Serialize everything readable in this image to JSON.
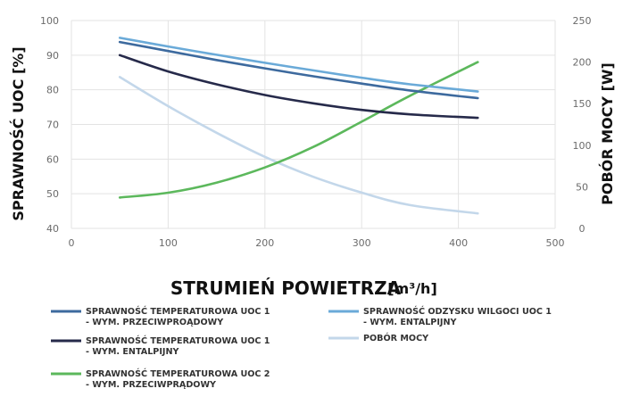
{
  "chart_data": {
    "type": "line",
    "xlabel": "STRUMIEŃ POWIETRZA",
    "xlabel_unit": "[m³/h]",
    "ylabel": "SPRAWNOŚĆ UOC [%]",
    "y2label": "POBÓR MOCY [W]",
    "xlim": [
      0,
      500
    ],
    "ylim": [
      40,
      100
    ],
    "y2lim": [
      0,
      250
    ],
    "x_ticks": [
      0,
      100,
      200,
      300,
      400,
      500
    ],
    "y_ticks": [
      40,
      50,
      60,
      70,
      80,
      90,
      100
    ],
    "y2_ticks": [
      0,
      50,
      100,
      150,
      200,
      250
    ],
    "grid": true,
    "legend_position": "bottom",
    "series": [
      {
        "name": "SPRAWNOŚĆ TEMPERATUROWA UOC 1 - WYM. PRZECIWPROĄDOWY",
        "axis": "left",
        "color": "#3d6a9e",
        "x": [
          50,
          100,
          150,
          200,
          250,
          300,
          350,
          420
        ],
        "values": [
          93.8,
          91.2,
          88.6,
          86.2,
          83.9,
          81.8,
          79.8,
          77.6
        ]
      },
      {
        "name": "SPRAWNOŚĆ TEMPERATUROWA UOC 1 - WYM. ENTALPIJNY",
        "axis": "left",
        "color": "#262a4a",
        "x": [
          50,
          100,
          150,
          200,
          250,
          300,
          350,
          420
        ],
        "values": [
          90,
          85.3,
          81.6,
          78.5,
          76.1,
          74.2,
          72.9,
          71.9
        ]
      },
      {
        "name": "SPRAWNOŚĆ TEMPERATUROWA UOC 2 - WYM. PRZECIWPRĄDOWY",
        "axis": "left",
        "color": "#5cb85c",
        "x": [
          50,
          100,
          150,
          200,
          250,
          300,
          350,
          420
        ],
        "values": [
          48.9,
          50.3,
          53.2,
          57.6,
          63.5,
          70.8,
          78.3,
          88
        ]
      },
      {
        "name": "SPRAWNOŚĆ ODZYSKU WILGOCI UOC 1 - WYM. ENTALPIJNY",
        "axis": "left",
        "color": "#6aaad8",
        "x": [
          50,
          100,
          150,
          200,
          250,
          300,
          350,
          420
        ],
        "values": [
          95,
          92.5,
          90.1,
          87.8,
          85.6,
          83.5,
          81.6,
          79.5
        ]
      },
      {
        "name": "POBÓR MOCY",
        "axis": "right",
        "color": "#c3d7ea",
        "x": [
          50,
          100,
          150,
          200,
          250,
          300,
          350,
          420
        ],
        "values": [
          182,
          147,
          115,
          86,
          62,
          43,
          28,
          18
        ]
      }
    ]
  },
  "legend": [
    {
      "line1": "SPRAWNOŚĆ TEMPERATUROWA UOC 1",
      "line2": "- WYM. PRZECIWPROĄDOWY",
      "color": "#3d6a9e"
    },
    {
      "line1": "SPRAWNOŚĆ ODZYSKU WILGOCI UOC 1",
      "line2": "- WYM. ENTALPIJNY",
      "color": "#6aaad8"
    },
    {
      "line1": "SPRAWNOŚĆ TEMPERATUROWA UOC 1",
      "line2": "- WYM. ENTALPIJNY",
      "color": "#262a4a"
    },
    {
      "line1": "POBÓR MOCY",
      "line2": "",
      "color": "#c3d7ea"
    },
    {
      "line1": "SPRAWNOŚĆ TEMPERATUROWA UOC 2",
      "line2": "- WYM. PRZECIWPRĄDOWY",
      "color": "#5cb85c"
    }
  ]
}
